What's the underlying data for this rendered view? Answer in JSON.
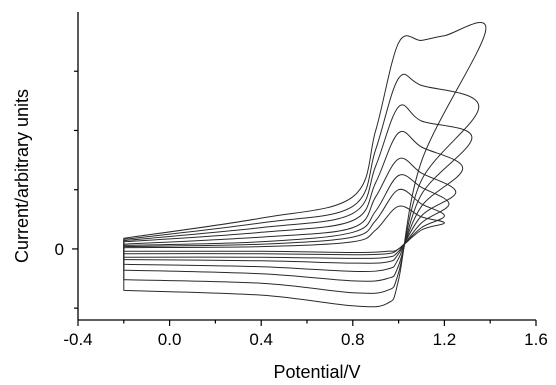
{
  "chart_data": {
    "type": "line",
    "title": "",
    "xlabel": "Potential/V",
    "ylabel": "Current/arbitrary units",
    "xlim": [
      -0.4,
      1.6
    ],
    "ylim": [
      -3,
      10
    ],
    "x_ticks": [
      -0.4,
      0.0,
      0.4,
      0.8,
      1.2,
      1.6
    ],
    "x_tick_labels": [
      "-0.4",
      "0.0",
      "0.4",
      "0.8",
      "1.2",
      "1.6"
    ],
    "y_ticks": [
      0
    ],
    "y_tick_labels": [
      "0"
    ],
    "grid": false,
    "legend": "none",
    "series": [
      {
        "vertex": 1.2,
        "forward": [
          [
            -0.2,
            0.05
          ],
          [
            0.4,
            0.1
          ],
          [
            0.8,
            0.3
          ],
          [
            0.9,
            0.8
          ],
          [
            1.0,
            1.8
          ],
          [
            1.1,
            1.35
          ],
          [
            1.2,
            1.1
          ]
        ],
        "reverse": [
          [
            1.2,
            1.1
          ],
          [
            1.1,
            0.8
          ],
          [
            1.0,
            0.0
          ],
          [
            0.95,
            -0.1
          ],
          [
            0.8,
            -0.15
          ],
          [
            0.4,
            -0.1
          ],
          [
            -0.2,
            -0.1
          ]
        ]
      },
      {
        "vertex": 1.2,
        "forward": [
          [
            -0.2,
            0.1
          ],
          [
            0.4,
            0.2
          ],
          [
            0.8,
            0.5
          ],
          [
            0.9,
            1.2
          ],
          [
            1.0,
            2.5
          ],
          [
            1.1,
            1.9
          ],
          [
            1.2,
            1.4
          ]
        ],
        "reverse": [
          [
            1.2,
            1.4
          ],
          [
            1.1,
            0.9
          ],
          [
            1.0,
            0.0
          ],
          [
            0.95,
            -0.2
          ],
          [
            0.8,
            -0.25
          ],
          [
            0.4,
            -0.2
          ],
          [
            -0.2,
            -0.2
          ]
        ]
      },
      {
        "vertex": 1.22,
        "forward": [
          [
            -0.2,
            0.15
          ],
          [
            0.4,
            0.3
          ],
          [
            0.8,
            0.7
          ],
          [
            0.9,
            1.6
          ],
          [
            1.0,
            3.1
          ],
          [
            1.1,
            2.6
          ],
          [
            1.22,
            1.9
          ]
        ],
        "reverse": [
          [
            1.22,
            1.9
          ],
          [
            1.1,
            1.1
          ],
          [
            1.0,
            -0.1
          ],
          [
            0.95,
            -0.35
          ],
          [
            0.8,
            -0.4
          ],
          [
            0.4,
            -0.35
          ],
          [
            -0.2,
            -0.35
          ]
        ]
      },
      {
        "vertex": 1.25,
        "forward": [
          [
            -0.2,
            0.2
          ],
          [
            0.4,
            0.5
          ],
          [
            0.8,
            0.9
          ],
          [
            0.9,
            2.2
          ],
          [
            1.0,
            3.8
          ],
          [
            1.1,
            3.2
          ],
          [
            1.25,
            2.4
          ]
        ],
        "reverse": [
          [
            1.25,
            2.4
          ],
          [
            1.1,
            1.4
          ],
          [
            1.0,
            -0.2
          ],
          [
            0.95,
            -0.55
          ],
          [
            0.8,
            -0.6
          ],
          [
            0.4,
            -0.5
          ],
          [
            -0.2,
            -0.45
          ]
        ]
      },
      {
        "vertex": 1.28,
        "forward": [
          [
            -0.2,
            0.3
          ],
          [
            0.4,
            0.7
          ],
          [
            0.8,
            1.2
          ],
          [
            0.9,
            2.8
          ],
          [
            1.0,
            4.9
          ],
          [
            1.1,
            4.3
          ],
          [
            1.28,
            3.4
          ]
        ],
        "reverse": [
          [
            1.28,
            3.4
          ],
          [
            1.1,
            1.8
          ],
          [
            1.0,
            -0.4
          ],
          [
            0.95,
            -0.85
          ],
          [
            0.8,
            -0.95
          ],
          [
            0.4,
            -0.75
          ],
          [
            -0.2,
            -0.65
          ]
        ]
      },
      {
        "vertex": 1.32,
        "forward": [
          [
            -0.2,
            0.35
          ],
          [
            0.4,
            0.9
          ],
          [
            0.8,
            1.5
          ],
          [
            0.9,
            3.5
          ],
          [
            1.0,
            6.0
          ],
          [
            1.1,
            5.4
          ],
          [
            1.32,
            4.7
          ]
        ],
        "reverse": [
          [
            1.32,
            4.7
          ],
          [
            1.1,
            2.3
          ],
          [
            1.0,
            -0.7
          ],
          [
            0.95,
            -1.25
          ],
          [
            0.8,
            -1.35
          ],
          [
            0.4,
            -1.05
          ],
          [
            -0.2,
            -0.9
          ]
        ]
      },
      {
        "vertex": 1.35,
        "forward": [
          [
            -0.2,
            0.4
          ],
          [
            0.4,
            1.1
          ],
          [
            0.8,
            1.8
          ],
          [
            0.9,
            4.2
          ],
          [
            1.0,
            7.2
          ],
          [
            1.1,
            6.9
          ],
          [
            1.35,
            6.0
          ]
        ],
        "reverse": [
          [
            1.35,
            6.0
          ],
          [
            1.1,
            2.9
          ],
          [
            1.0,
            -1.0
          ],
          [
            0.95,
            -1.75
          ],
          [
            0.8,
            -1.85
          ],
          [
            0.4,
            -1.45
          ],
          [
            -0.2,
            -1.3
          ]
        ]
      },
      {
        "vertex": 1.38,
        "forward": [
          [
            -0.2,
            0.45
          ],
          [
            0.4,
            1.3
          ],
          [
            0.8,
            2.2
          ],
          [
            0.9,
            5.0
          ],
          [
            1.0,
            8.7
          ],
          [
            1.1,
            8.8
          ],
          [
            1.2,
            9.0
          ],
          [
            1.38,
            9.2
          ]
        ],
        "reverse": [
          [
            1.38,
            9.2
          ],
          [
            1.1,
            3.7
          ],
          [
            1.0,
            -1.3
          ],
          [
            0.95,
            -2.3
          ],
          [
            0.8,
            -2.4
          ],
          [
            0.4,
            -1.95
          ],
          [
            -0.2,
            -1.75
          ]
        ]
      }
    ]
  }
}
